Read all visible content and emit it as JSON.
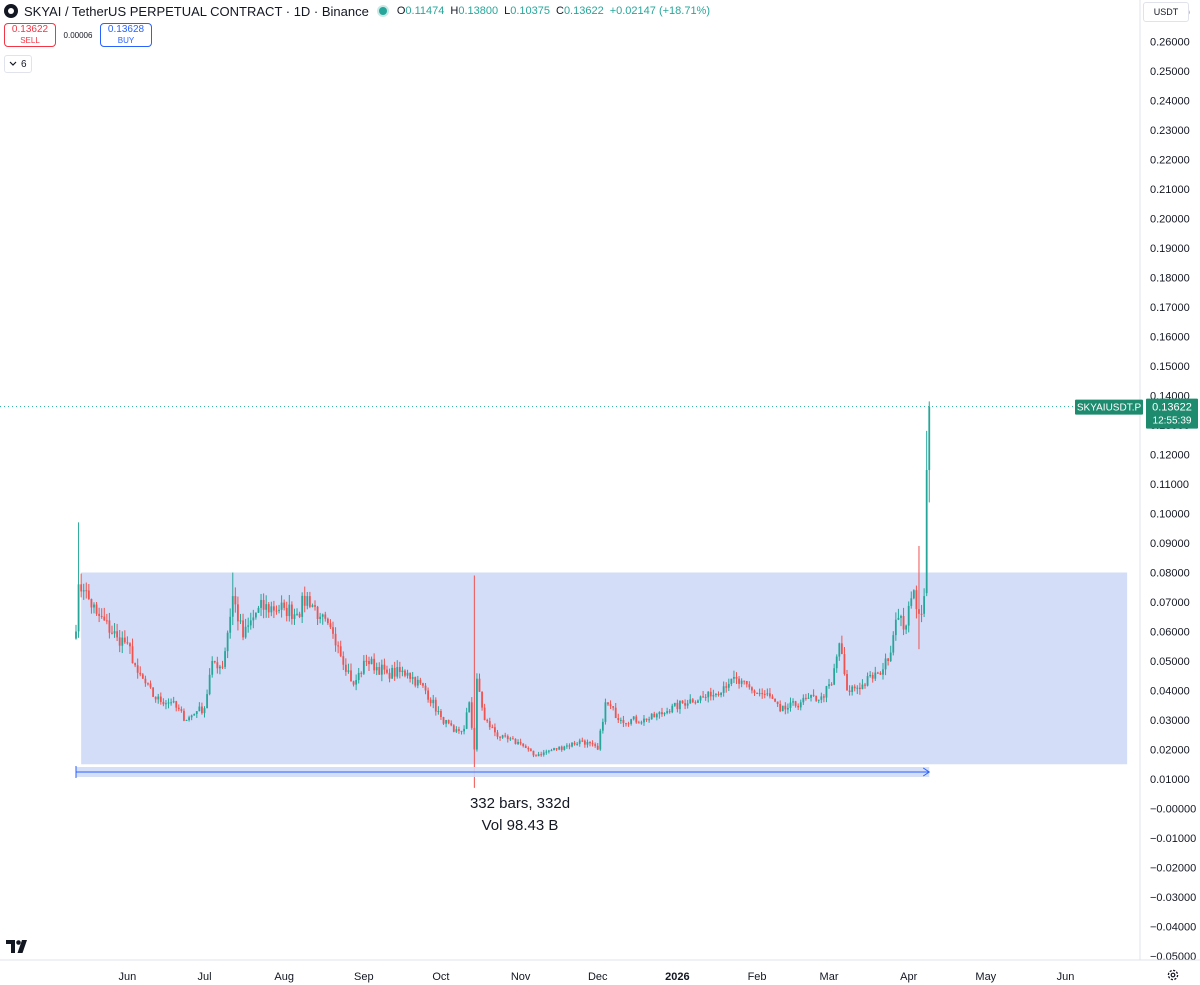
{
  "header": {
    "title": "SKYAI / TetherUS PERPETUAL CONTRACT · 1D · Binance",
    "ohlc": {
      "o_label": "O",
      "o": "0.11474",
      "h_label": "H",
      "h": "0.13800",
      "l_label": "L",
      "l": "0.10375",
      "c_label": "C",
      "c": "0.13622",
      "change": "+0.02147 (+18.71%)"
    }
  },
  "trade": {
    "sell_price": "0.13622",
    "sell_label": "SELL",
    "spread": "0.00006",
    "buy_price": "0.13628",
    "buy_label": "BUY"
  },
  "indicators_count": "6",
  "currency": "USDT",
  "price_label": {
    "symbol": "SKYAIUSDT.P",
    "price": "0.13622",
    "countdown": "12:55:39"
  },
  "measure": {
    "bars": "332 bars, 332d",
    "volume": "Vol 98.43 B"
  },
  "colors": {
    "up": "#26a69a",
    "down": "#ef5350",
    "range_fill": "#d1dbf7",
    "measure_line": "#2962ff",
    "price_tag": "#1e8b6f"
  },
  "icons": [
    "tradingview-logo-icon",
    "settings-icon",
    "chevron-down-icon"
  ],
  "chart_data": {
    "type": "candlestick",
    "y_axis_ticks": [
      "0.27000",
      "0.26000",
      "0.25000",
      "0.24000",
      "0.23000",
      "0.22000",
      "0.21000",
      "0.20000",
      "0.19000",
      "0.18000",
      "0.17000",
      "0.16000",
      "0.15000",
      "0.14000",
      "0.13000",
      "0.12000",
      "0.11000",
      "0.10000",
      "0.09000",
      "0.08000",
      "0.07000",
      "0.06000",
      "0.05000",
      "0.04000",
      "0.03000",
      "0.02000",
      "0.01000",
      "−0.00000",
      "−0.01000",
      "−0.02000",
      "−0.03000",
      "−0.04000",
      "−0.05000"
    ],
    "ylim": [
      -0.05,
      0.27
    ],
    "x_axis_ticks": [
      {
        "label": "Jun",
        "date": "2025-06-01"
      },
      {
        "label": "Jul",
        "date": "2025-07-01"
      },
      {
        "label": "Aug",
        "date": "2025-08-01"
      },
      {
        "label": "Sep",
        "date": "2025-09-01"
      },
      {
        "label": "Oct",
        "date": "2025-10-01"
      },
      {
        "label": "Nov",
        "date": "2025-11-01"
      },
      {
        "label": "Dec",
        "date": "2025-12-01"
      },
      {
        "label": "2026",
        "date": "2026-01-01",
        "bold": true
      },
      {
        "label": "Feb",
        "date": "2026-02-01"
      },
      {
        "label": "Mar",
        "date": "2026-03-01"
      },
      {
        "label": "Apr",
        "date": "2026-04-01"
      },
      {
        "label": "May",
        "date": "2026-05-01"
      },
      {
        "label": "Jun",
        "date": "2026-06-01"
      }
    ],
    "xlim": [
      "2025-05-12",
      "2026-06-30"
    ],
    "price_line": 0.13622,
    "range_box": {
      "start": "2025-05-14",
      "end": "2026-06-25",
      "top": 0.08,
      "bottom": 0.015
    },
    "measure": {
      "start": "2025-05-12",
      "end": "2026-04-09"
    },
    "anchor_points": [
      {
        "date": "2025-05-12",
        "close": 0.06
      },
      {
        "date": "2025-05-13",
        "close": 0.076
      },
      {
        "date": "2025-05-15",
        "close": 0.074
      },
      {
        "date": "2025-05-20",
        "close": 0.066
      },
      {
        "date": "2025-05-28",
        "close": 0.058
      },
      {
        "date": "2025-06-01",
        "close": 0.056
      },
      {
        "date": "2025-06-05",
        "close": 0.046
      },
      {
        "date": "2025-06-12",
        "close": 0.037
      },
      {
        "date": "2025-06-18",
        "close": 0.036
      },
      {
        "date": "2025-06-24",
        "close": 0.03
      },
      {
        "date": "2025-06-28",
        "close": 0.033
      },
      {
        "date": "2025-07-01",
        "close": 0.034
      },
      {
        "date": "2025-07-04",
        "close": 0.05
      },
      {
        "date": "2025-07-08",
        "close": 0.048
      },
      {
        "date": "2025-07-12",
        "close": 0.072
      },
      {
        "date": "2025-07-16",
        "close": 0.058
      },
      {
        "date": "2025-07-22",
        "close": 0.068
      },
      {
        "date": "2025-08-01",
        "close": 0.068
      },
      {
        "date": "2025-08-06",
        "close": 0.066
      },
      {
        "date": "2025-08-10",
        "close": 0.072
      },
      {
        "date": "2025-08-15",
        "close": 0.065
      },
      {
        "date": "2025-08-22",
        "close": 0.055
      },
      {
        "date": "2025-08-28",
        "close": 0.042
      },
      {
        "date": "2025-09-02",
        "close": 0.05
      },
      {
        "date": "2025-09-10",
        "close": 0.046
      },
      {
        "date": "2025-09-18",
        "close": 0.046
      },
      {
        "date": "2025-09-25",
        "close": 0.04
      },
      {
        "date": "2025-10-01",
        "close": 0.031
      },
      {
        "date": "2025-10-06",
        "close": 0.026
      },
      {
        "date": "2025-10-10",
        "close": 0.027
      },
      {
        "date": "2025-10-12",
        "close": 0.036
      },
      {
        "date": "2025-10-14",
        "close": 0.02
      },
      {
        "date": "2025-10-15",
        "close": 0.044
      },
      {
        "date": "2025-10-18",
        "close": 0.03
      },
      {
        "date": "2025-10-24",
        "close": 0.024
      },
      {
        "date": "2025-11-01",
        "close": 0.022
      },
      {
        "date": "2025-11-06",
        "close": 0.018
      },
      {
        "date": "2025-11-10",
        "close": 0.019
      },
      {
        "date": "2025-11-18",
        "close": 0.021
      },
      {
        "date": "2025-11-25",
        "close": 0.023
      },
      {
        "date": "2025-12-01",
        "close": 0.02
      },
      {
        "date": "2025-12-04",
        "close": 0.036
      },
      {
        "date": "2025-12-10",
        "close": 0.03
      },
      {
        "date": "2025-12-20",
        "close": 0.03
      },
      {
        "date": "2025-12-28",
        "close": 0.033
      },
      {
        "date": "2026-01-06",
        "close": 0.037
      },
      {
        "date": "2026-01-14",
        "close": 0.038
      },
      {
        "date": "2026-01-22",
        "close": 0.044
      },
      {
        "date": "2026-01-30",
        "close": 0.04
      },
      {
        "date": "2026-02-06",
        "close": 0.038
      },
      {
        "date": "2026-02-10",
        "close": 0.033
      },
      {
        "date": "2026-02-18",
        "close": 0.036
      },
      {
        "date": "2026-02-26",
        "close": 0.038
      },
      {
        "date": "2026-03-02",
        "close": 0.042
      },
      {
        "date": "2026-03-05",
        "close": 0.056
      },
      {
        "date": "2026-03-08",
        "close": 0.04
      },
      {
        "date": "2026-03-14",
        "close": 0.042
      },
      {
        "date": "2026-03-20",
        "close": 0.046
      },
      {
        "date": "2026-03-24",
        "close": 0.05
      },
      {
        "date": "2026-03-27",
        "close": 0.064
      },
      {
        "date": "2026-03-31",
        "close": 0.062
      },
      {
        "date": "2026-04-03",
        "close": 0.074
      },
      {
        "date": "2026-04-05",
        "close": 0.066
      },
      {
        "date": "2026-04-07",
        "close": 0.072
      },
      {
        "date": "2026-04-08",
        "close": 0.115
      },
      {
        "date": "2026-04-09",
        "close": 0.13622
      }
    ],
    "notable_candles": [
      {
        "date": "2025-05-13",
        "high": 0.097
      },
      {
        "date": "2025-07-12",
        "high": 0.08
      },
      {
        "date": "2025-10-14",
        "high": 0.079,
        "low": 0.007
      },
      {
        "date": "2026-04-05",
        "high": 0.089,
        "low": 0.054
      },
      {
        "date": "2026-04-08",
        "open": 0.073,
        "high": 0.128,
        "low": 0.072,
        "close": 0.11474
      },
      {
        "date": "2026-04-09",
        "open": 0.11474,
        "high": 0.138,
        "low": 0.10375,
        "close": 0.13622
      }
    ]
  }
}
